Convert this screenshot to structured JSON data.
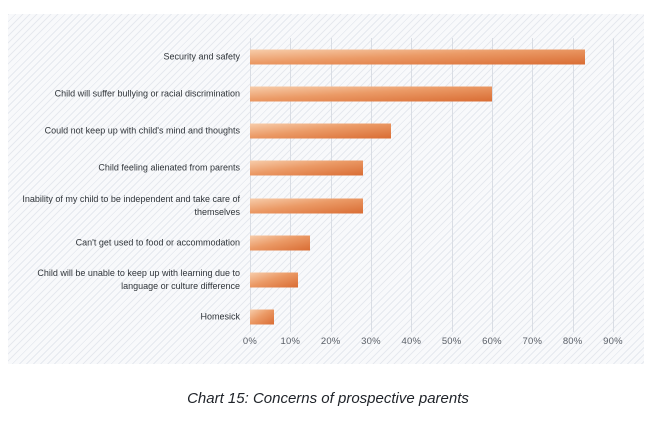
{
  "caption": "Chart 15: Concerns of prospective parents",
  "colors": {
    "bar_gradient_start": "#f7cdab",
    "bar_gradient_end": "#d96c33",
    "panel_background": "#f8f9fb",
    "gridline": "#d9dde4",
    "tick_text": "#5b6068",
    "category_text": "#2f3439"
  },
  "chart_data": {
    "type": "bar",
    "orientation": "horizontal",
    "title": "",
    "xlabel": "",
    "ylabel": "",
    "xlim": [
      0,
      90
    ],
    "grid": true,
    "x_ticks": [
      "0%",
      "10%",
      "20%",
      "30%",
      "40%",
      "50%",
      "60%",
      "70%",
      "80%",
      "90%"
    ],
    "categories": [
      "Security and safety",
      "Child will suffer bullying or racial discrimination",
      "Could not keep up with child's mind and thoughts",
      "Child feeling alienated from parents",
      "Inability of my child to be independent and take care of themselves",
      "Can't get used to food or accommodation",
      "Child will be unable to keep up with learning due to language or culture difference",
      "Homesick"
    ],
    "values": [
      83,
      60,
      35,
      28,
      28,
      15,
      12,
      6
    ],
    "unit": "%"
  }
}
